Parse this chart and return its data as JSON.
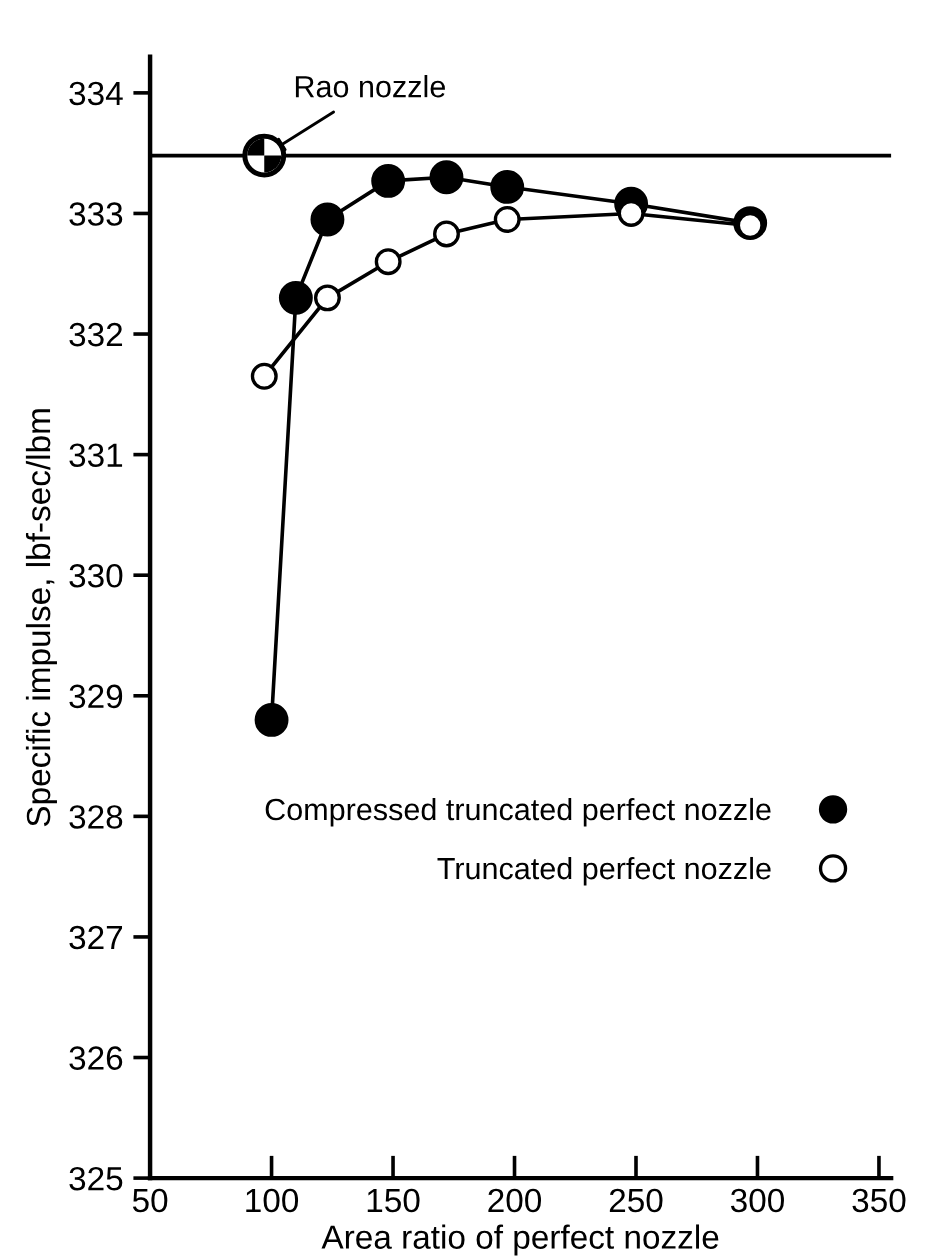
{
  "chart_data": {
    "type": "line",
    "xlabel": "Area ratio of perfect nozzle",
    "ylabel": "Specific impulse, lbf-sec/lbm",
    "xlim": [
      50,
      355
    ],
    "xticks": [
      50,
      100,
      150,
      200,
      250,
      300,
      350
    ],
    "ylim": [
      325,
      334.3
    ],
    "yticks": [
      325,
      326,
      327,
      328,
      329,
      330,
      331,
      332,
      333,
      334
    ],
    "series": [
      {
        "name": "Compressed truncated perfect nozzle",
        "color": "#000000",
        "x": [
          100,
          110,
          123,
          148,
          172,
          197,
          248,
          297
        ],
        "values": [
          328.8,
          332.3,
          332.95,
          333.27,
          333.3,
          333.22,
          333.08,
          332.92
        ]
      },
      {
        "name": "Truncated perfect nozzle",
        "color": "#ffffff",
        "x": [
          97,
          123,
          148,
          172,
          197,
          248,
          297
        ],
        "values": [
          331.65,
          332.3,
          332.6,
          332.83,
          332.95,
          333.0,
          332.9
        ]
      },
      {
        "type": "scatter",
        "color": "#ffffff",
        "x": [
          97
        ],
        "values": [
          333.48
        ]
      }
    ],
    "ref_lines": [
      {
        "axis": "y",
        "value": 333.48
      }
    ],
    "annotations": [
      {
        "text": "Rao nozzle",
        "x": 97,
        "y": 333.48
      }
    ],
    "marker": "circle",
    "legend": "right",
    "grid": false
  }
}
